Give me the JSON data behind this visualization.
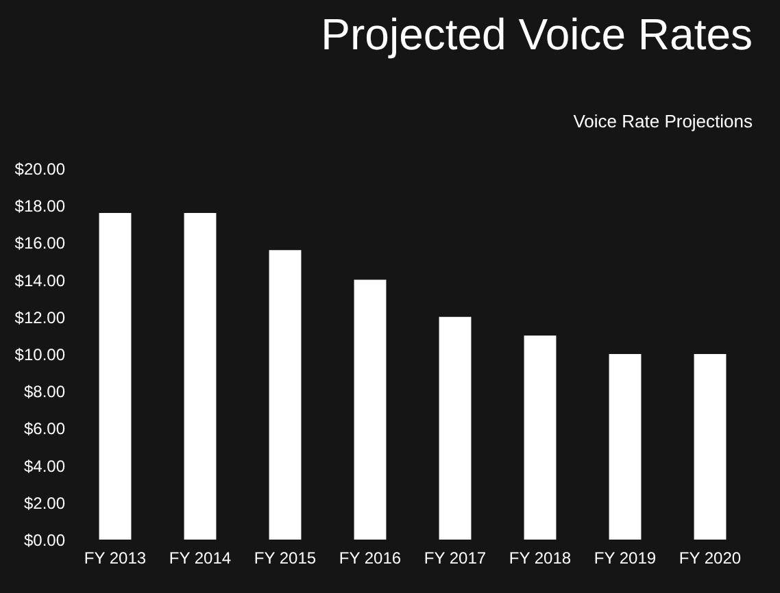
{
  "chart_data": {
    "type": "bar",
    "title": "Projected Voice Rates",
    "subtitle": "Voice Rate Projections",
    "categories": [
      "FY 2013",
      "FY 2014",
      "FY 2015",
      "FY 2016",
      "FY 2017",
      "FY 2018",
      "FY 2019",
      "FY 2020"
    ],
    "values": [
      17.6,
      17.6,
      15.6,
      14.0,
      12.0,
      11.0,
      10.0,
      10.0
    ],
    "color": "#ffffff",
    "ylim": [
      0,
      20
    ],
    "yticks": [
      {
        "value": 0,
        "label": "$0.00"
      },
      {
        "value": 2,
        "label": "$2.00"
      },
      {
        "value": 4,
        "label": "$4.00"
      },
      {
        "value": 6,
        "label": "$6.00"
      },
      {
        "value": 8,
        "label": "$8.00"
      },
      {
        "value": 10,
        "label": "$10.00"
      },
      {
        "value": 12,
        "label": "$12.00"
      },
      {
        "value": 14,
        "label": "$14.00"
      },
      {
        "value": 16,
        "label": "$16.00"
      },
      {
        "value": 18,
        "label": "$18.00"
      },
      {
        "value": 20,
        "label": "$20.00"
      }
    ],
    "grid": false
  }
}
